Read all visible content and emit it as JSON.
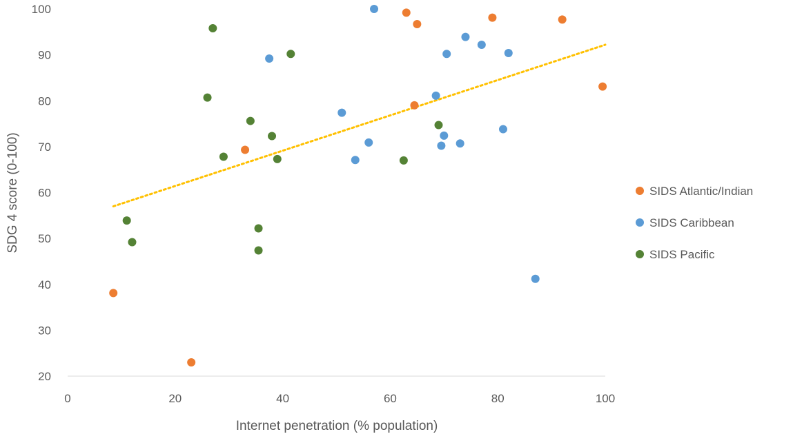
{
  "chart_data": {
    "type": "scatter",
    "title": "",
    "xlabel": "Internet penetration (% population)",
    "ylabel": "SDG 4 score (0-100)",
    "xlim": [
      0,
      100
    ],
    "ylim": [
      20,
      100
    ],
    "xticks": [
      0,
      20,
      40,
      60,
      80,
      100
    ],
    "yticks": [
      20,
      30,
      40,
      50,
      60,
      70,
      80,
      90,
      100
    ],
    "grid": false,
    "legend_position": "right",
    "series": [
      {
        "name": "SIDS Atlantic/Indian",
        "color": "#ED7D31",
        "points": [
          {
            "x": 8.5,
            "y": 38.1
          },
          {
            "x": 23,
            "y": 23
          },
          {
            "x": 33,
            "y": 69.3
          },
          {
            "x": 63,
            "y": 99.2
          },
          {
            "x": 65,
            "y": 96.7
          },
          {
            "x": 64.5,
            "y": 79
          },
          {
            "x": 79,
            "y": 98.1
          },
          {
            "x": 92,
            "y": 97.7
          },
          {
            "x": 99.5,
            "y": 83.1
          }
        ]
      },
      {
        "name": "SIDS Caribbean",
        "color": "#5B9BD5",
        "points": [
          {
            "x": 37.5,
            "y": 89.2
          },
          {
            "x": 57,
            "y": 100
          },
          {
            "x": 51,
            "y": 77.4
          },
          {
            "x": 56,
            "y": 70.9
          },
          {
            "x": 53.5,
            "y": 67.1
          },
          {
            "x": 68.5,
            "y": 81.1
          },
          {
            "x": 70.5,
            "y": 90.2
          },
          {
            "x": 74,
            "y": 93.9
          },
          {
            "x": 77,
            "y": 92.2
          },
          {
            "x": 82,
            "y": 90.4
          },
          {
            "x": 70,
            "y": 72.4
          },
          {
            "x": 69.5,
            "y": 70.2
          },
          {
            "x": 73,
            "y": 70.7
          },
          {
            "x": 81,
            "y": 73.8
          },
          {
            "x": 87,
            "y": 41.2
          }
        ]
      },
      {
        "name": "SIDS Pacific",
        "color": "#548235",
        "points": [
          {
            "x": 27,
            "y": 95.8
          },
          {
            "x": 41.5,
            "y": 90.2
          },
          {
            "x": 26,
            "y": 80.7
          },
          {
            "x": 34,
            "y": 75.6
          },
          {
            "x": 38,
            "y": 72.3
          },
          {
            "x": 29,
            "y": 67.8
          },
          {
            "x": 39,
            "y": 67.3
          },
          {
            "x": 11,
            "y": 53.9
          },
          {
            "x": 12,
            "y": 49.2
          },
          {
            "x": 35.5,
            "y": 52.2
          },
          {
            "x": 35.5,
            "y": 47.4
          },
          {
            "x": 62.5,
            "y": 67
          },
          {
            "x": 69,
            "y": 74.7
          }
        ]
      }
    ],
    "trendline": {
      "style": "dotted",
      "color": "#FFC000",
      "from": {
        "x": 8.5,
        "y": 57
      },
      "to": {
        "x": 100,
        "y": 92.2
      }
    }
  }
}
